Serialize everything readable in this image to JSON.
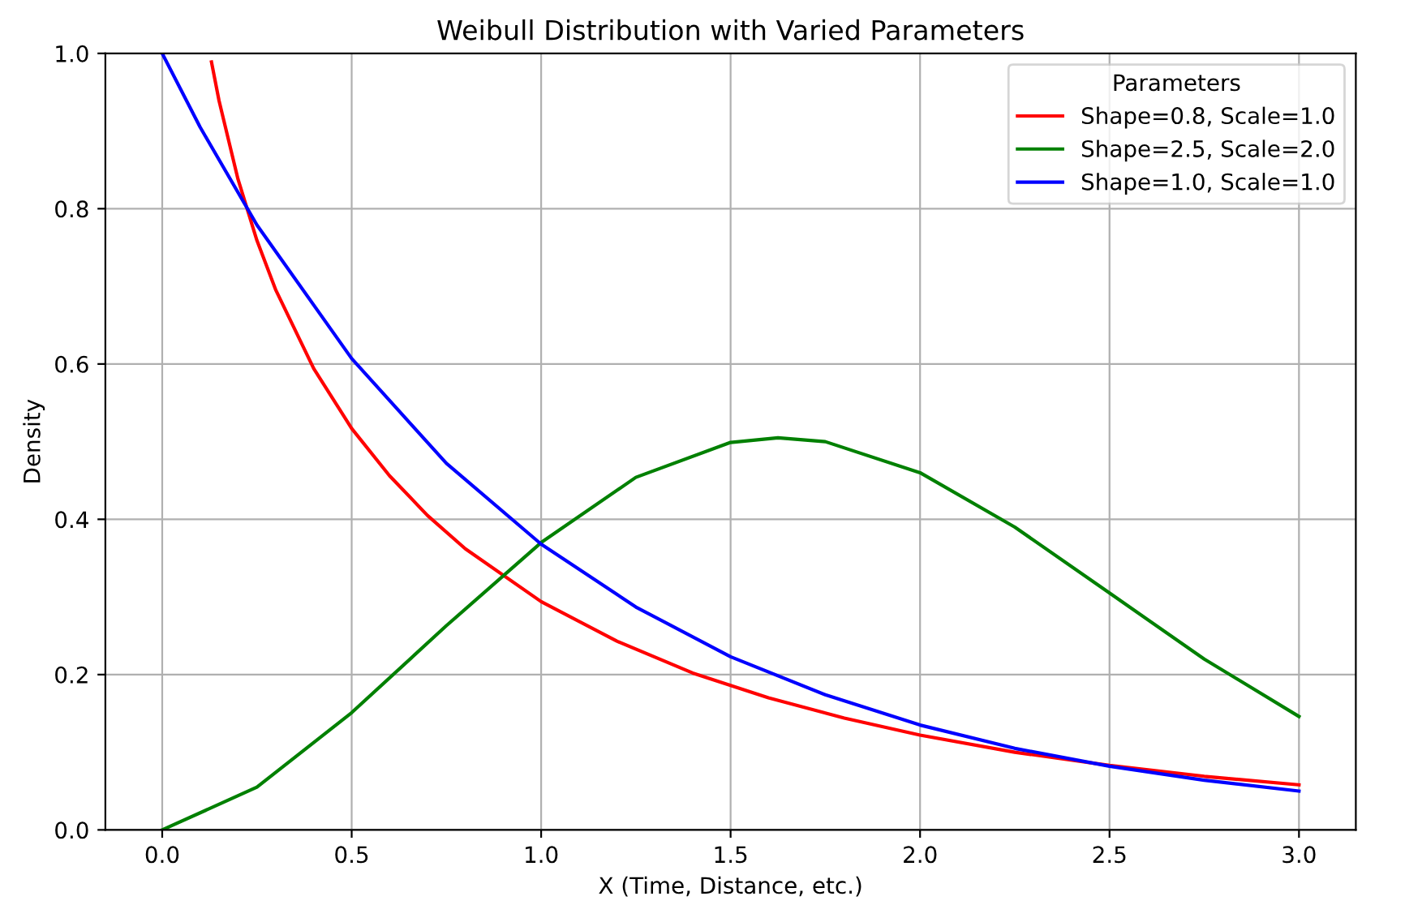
{
  "chart_data": {
    "type": "line",
    "title": "Weibull Distribution with Varied Parameters",
    "xlabel": "X (Time, Distance, etc.)",
    "ylabel": "Density",
    "legend_title": "Parameters",
    "legend": "top right",
    "grid": true,
    "xlim": [
      -0.15,
      3.15
    ],
    "ylim": [
      0,
      1
    ],
    "xticks": [
      {
        "value": 0,
        "label": "0.0"
      },
      0.5,
      {
        "value": 1,
        "label": "1.0"
      },
      1.5,
      {
        "value": 2,
        "label": "2.0"
      },
      2.5,
      {
        "value": 3,
        "label": "3.0"
      }
    ],
    "yticks": [
      {
        "value": 0,
        "label": "0.0"
      },
      0.2,
      0.4,
      0.6,
      0.8,
      {
        "value": 1,
        "label": "1.0"
      }
    ],
    "series": [
      {
        "name": "Shape=0.8, Scale=1.0",
        "color": "#ff0000",
        "x": [
          0.13,
          0.15,
          0.2,
          0.25,
          0.3,
          0.4,
          0.5,
          0.6,
          0.7,
          0.8,
          1.0,
          1.2,
          1.4,
          1.6,
          1.8,
          2.0,
          2.25,
          2.5,
          2.75,
          3.0
        ],
        "values": [
          0.989,
          0.939,
          0.838,
          0.759,
          0.695,
          0.594,
          0.517,
          0.456,
          0.405,
          0.362,
          0.294,
          0.243,
          0.202,
          0.17,
          0.144,
          0.122,
          0.1,
          0.083,
          0.069,
          0.058
        ]
      },
      {
        "name": "Shape=2.5, Scale=2.0",
        "color": "#008000",
        "x": [
          0,
          0.25,
          0.5,
          0.75,
          1.0,
          1.25,
          1.5,
          1.625,
          1.75,
          2.0,
          2.25,
          2.5,
          2.75,
          3.0
        ],
        "values": [
          0,
          0.055,
          0.151,
          0.263,
          0.37,
          0.454,
          0.499,
          0.505,
          0.5,
          0.46,
          0.39,
          0.305,
          0.22,
          0.146
        ]
      },
      {
        "name": "Shape=1.0, Scale=1.0",
        "color": "#0000ff",
        "x": [
          0,
          0.1,
          0.25,
          0.5,
          0.75,
          1.0,
          1.25,
          1.5,
          1.75,
          2.0,
          2.25,
          2.5,
          2.75,
          3.0
        ],
        "values": [
          1.0,
          0.905,
          0.779,
          0.607,
          0.472,
          0.368,
          0.287,
          0.223,
          0.174,
          0.135,
          0.105,
          0.082,
          0.064,
          0.05
        ]
      }
    ]
  }
}
